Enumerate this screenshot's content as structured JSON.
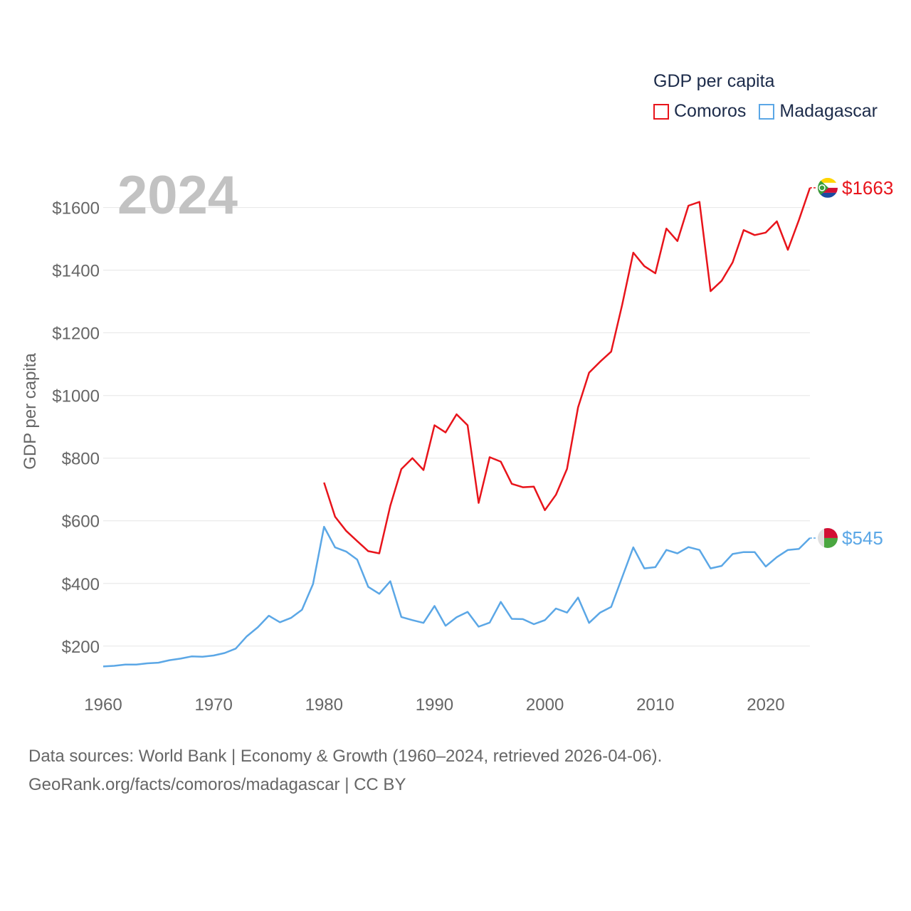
{
  "chart_data": {
    "type": "line",
    "ylabel": "GDP per capita",
    "year_label": "2024",
    "legend_title": "GDP per capita",
    "x_ticks": [
      1960,
      1970,
      1980,
      1990,
      2000,
      2010,
      2020
    ],
    "y_ticks": [
      200,
      400,
      600,
      800,
      1000,
      1200,
      1400,
      1600
    ],
    "y_tick_labels": [
      "$200",
      "$400",
      "$600",
      "$800",
      "$1000",
      "$1200",
      "$1400",
      "$1600"
    ],
    "xlim": [
      1960,
      2024
    ],
    "ylim": [
      70,
      1740
    ],
    "series": [
      {
        "name": "Comoros",
        "color": "#e8141b",
        "end_label": "$1663",
        "x": [
          1980,
          1981,
          1982,
          1983,
          1984,
          1985,
          1986,
          1987,
          1988,
          1989,
          1990,
          1991,
          1992,
          1993,
          1994,
          1995,
          1996,
          1997,
          1998,
          1999,
          2000,
          2001,
          2002,
          2003,
          2004,
          2005,
          2006,
          2007,
          2008,
          2009,
          2010,
          2011,
          2012,
          2013,
          2014,
          2015,
          2016,
          2017,
          2018,
          2019,
          2020,
          2021,
          2022,
          2023,
          2024
        ],
        "values": [
          722,
          613,
          568,
          535,
          503,
          496,
          648,
          765,
          800,
          762,
          905,
          882,
          940,
          905,
          657,
          803,
          789,
          718,
          707,
          709,
          634,
          683,
          766,
          962,
          1073,
          1108,
          1140,
          1290,
          1456,
          1413,
          1390,
          1533,
          1493,
          1606,
          1618,
          1333,
          1366,
          1425,
          1528,
          1512,
          1520,
          1556,
          1465,
          1560,
          1663
        ]
      },
      {
        "name": "Madagascar",
        "color": "#5ba7e6",
        "end_label": "$545",
        "x": [
          1960,
          1961,
          1962,
          1963,
          1964,
          1965,
          1966,
          1967,
          1968,
          1969,
          1970,
          1971,
          1972,
          1973,
          1974,
          1975,
          1976,
          1977,
          1978,
          1979,
          1980,
          1981,
          1982,
          1983,
          1984,
          1985,
          1986,
          1987,
          1988,
          1989,
          1990,
          1991,
          1992,
          1993,
          1994,
          1995,
          1996,
          1997,
          1998,
          1999,
          2000,
          2001,
          2002,
          2003,
          2004,
          2005,
          2006,
          2007,
          2008,
          2009,
          2010,
          2011,
          2012,
          2013,
          2014,
          2015,
          2016,
          2017,
          2018,
          2019,
          2020,
          2021,
          2022,
          2023,
          2024
        ],
        "values": [
          135,
          137,
          141,
          141,
          145,
          147,
          155,
          160,
          167,
          166,
          170,
          178,
          192,
          231,
          260,
          297,
          276,
          290,
          316,
          398,
          581,
          515,
          502,
          476,
          389,
          367,
          407,
          293,
          283,
          274,
          328,
          265,
          292,
          309,
          262,
          275,
          341,
          287,
          286,
          270,
          283,
          320,
          307,
          355,
          274,
          307,
          325,
          420,
          515,
          448,
          452,
          507,
          496,
          516,
          507,
          448,
          456,
          494,
          500,
          500,
          454,
          484,
          507,
          510,
          545
        ]
      }
    ]
  },
  "footer": {
    "line1": "Data sources: World Bank | Economy & Growth (1960–2024, retrieved 2026-04-06).",
    "line2": "GeoRank.org/facts/comoros/madagascar | CC BY"
  }
}
